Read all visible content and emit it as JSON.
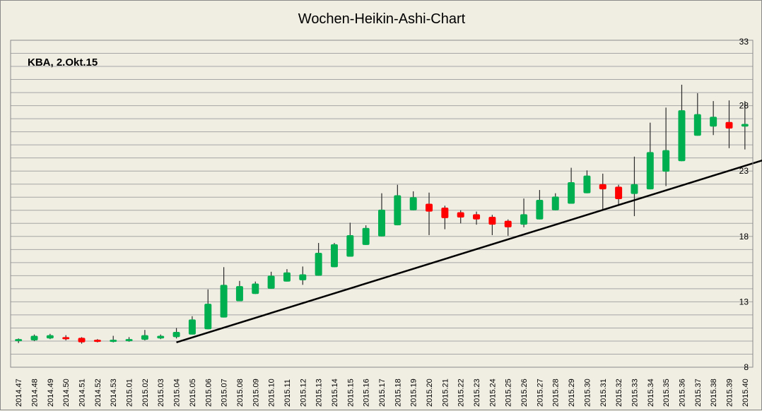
{
  "chart_data": {
    "type": "candlestick",
    "title": "Wochen-Heikin-Ashi-Chart",
    "annotation": "KBA, 2.Okt.15",
    "ylim": [
      8,
      33
    ],
    "yticks": [
      8,
      13,
      18,
      23,
      28,
      33
    ],
    "grid": true,
    "colors": {
      "up": "#00b050",
      "down": "#ff0000",
      "trendline": "#000000",
      "grid": "#a6a6a6",
      "background": "#f0ede2"
    },
    "categories": [
      "2014.47",
      "2014.48",
      "2014.49",
      "2014.50",
      "2014.51",
      "2014.52",
      "2014.53",
      "2015.01",
      "2015.02",
      "2015.03",
      "2015.04",
      "2015.05",
      "2015.06",
      "2015.07",
      "2015.08",
      "2015.09",
      "2015.10",
      "2015.11",
      "2015.12",
      "2015.13",
      "2015.14",
      "2015.15",
      "2015.16",
      "2015.17",
      "2015.18",
      "2015.19",
      "2015.20",
      "2015.21",
      "2015.22",
      "2015.23",
      "2015.24",
      "2015.25",
      "2015.26",
      "2015.27",
      "2015.28",
      "2015.29",
      "2015.30",
      "2015.31",
      "2015.32",
      "2015.33",
      "2015.34",
      "2015.35",
      "2015.36",
      "2015.37",
      "2015.38",
      "2015.39",
      "2015.40"
    ],
    "candles": [
      {
        "o": 10.0,
        "h": 10.2,
        "l": 9.85,
        "c": 10.15
      },
      {
        "o": 10.05,
        "h": 10.5,
        "l": 10.0,
        "c": 10.4
      },
      {
        "o": 10.2,
        "h": 10.55,
        "l": 10.15,
        "c": 10.45
      },
      {
        "o": 10.3,
        "h": 10.45,
        "l": 10.05,
        "c": 10.15
      },
      {
        "o": 10.25,
        "h": 10.3,
        "l": 9.8,
        "c": 9.9
      },
      {
        "o": 10.1,
        "h": 10.15,
        "l": 9.9,
        "c": 9.95
      },
      {
        "o": 10.0,
        "h": 10.4,
        "l": 9.9,
        "c": 10.1
      },
      {
        "o": 10.0,
        "h": 10.3,
        "l": 9.95,
        "c": 10.15
      },
      {
        "o": 10.1,
        "h": 10.85,
        "l": 10.05,
        "c": 10.45
      },
      {
        "o": 10.2,
        "h": 10.5,
        "l": 10.15,
        "c": 10.4
      },
      {
        "o": 10.3,
        "h": 11.0,
        "l": 10.2,
        "c": 10.7
      },
      {
        "o": 10.5,
        "h": 11.9,
        "l": 10.5,
        "c": 11.65
      },
      {
        "o": 10.9,
        "h": 13.95,
        "l": 10.9,
        "c": 12.85
      },
      {
        "o": 11.8,
        "h": 15.65,
        "l": 11.8,
        "c": 14.3
      },
      {
        "o": 13.05,
        "h": 14.6,
        "l": 13.05,
        "c": 14.2
      },
      {
        "o": 13.6,
        "h": 14.55,
        "l": 13.6,
        "c": 14.4
      },
      {
        "o": 14.0,
        "h": 15.3,
        "l": 14.0,
        "c": 15.0
      },
      {
        "o": 14.55,
        "h": 15.5,
        "l": 14.55,
        "c": 15.25
      },
      {
        "o": 14.65,
        "h": 15.7,
        "l": 14.3,
        "c": 15.1
      },
      {
        "o": 15.0,
        "h": 17.5,
        "l": 15.0,
        "c": 16.75
      },
      {
        "o": 15.65,
        "h": 17.5,
        "l": 15.65,
        "c": 17.4
      },
      {
        "o": 16.45,
        "h": 19.05,
        "l": 16.45,
        "c": 18.1
      },
      {
        "o": 17.35,
        "h": 18.85,
        "l": 17.35,
        "c": 18.65
      },
      {
        "o": 18.0,
        "h": 21.3,
        "l": 18.0,
        "c": 20.05
      },
      {
        "o": 18.85,
        "h": 21.95,
        "l": 18.85,
        "c": 21.15
      },
      {
        "o": 20.0,
        "h": 21.45,
        "l": 20.0,
        "c": 21.0
      },
      {
        "o": 20.5,
        "h": 21.35,
        "l": 18.1,
        "c": 19.9
      },
      {
        "o": 20.2,
        "h": 20.35,
        "l": 18.55,
        "c": 19.4
      },
      {
        "o": 19.85,
        "h": 20.0,
        "l": 19.0,
        "c": 19.45
      },
      {
        "o": 19.7,
        "h": 19.9,
        "l": 18.9,
        "c": 19.3
      },
      {
        "o": 19.5,
        "h": 19.65,
        "l": 18.1,
        "c": 18.9
      },
      {
        "o": 19.2,
        "h": 19.3,
        "l": 18.05,
        "c": 18.7
      },
      {
        "o": 18.9,
        "h": 20.9,
        "l": 18.7,
        "c": 19.7
      },
      {
        "o": 19.3,
        "h": 21.55,
        "l": 19.3,
        "c": 20.8
      },
      {
        "o": 20.0,
        "h": 21.3,
        "l": 20.0,
        "c": 21.05
      },
      {
        "o": 20.5,
        "h": 23.25,
        "l": 20.5,
        "c": 22.15
      },
      {
        "o": 21.3,
        "h": 23.05,
        "l": 21.3,
        "c": 22.65
      },
      {
        "o": 22.0,
        "h": 22.8,
        "l": 20.0,
        "c": 21.6
      },
      {
        "o": 21.8,
        "h": 21.95,
        "l": 20.4,
        "c": 20.85
      },
      {
        "o": 21.25,
        "h": 24.1,
        "l": 19.55,
        "c": 22.0
      },
      {
        "o": 21.6,
        "h": 26.7,
        "l": 21.6,
        "c": 24.45
      },
      {
        "o": 22.95,
        "h": 27.85,
        "l": 21.85,
        "c": 24.6
      },
      {
        "o": 23.75,
        "h": 29.6,
        "l": 23.75,
        "c": 27.65
      },
      {
        "o": 25.7,
        "h": 28.95,
        "l": 25.7,
        "c": 27.35
      },
      {
        "o": 26.4,
        "h": 28.35,
        "l": 25.75,
        "c": 27.15
      },
      {
        "o": 26.75,
        "h": 28.4,
        "l": 24.75,
        "c": 26.25
      },
      {
        "o": 26.4,
        "h": 28.35,
        "l": 24.65,
        "c": 26.6
      }
    ],
    "trendline": {
      "start": {
        "x": "2015.04",
        "y": 9.9
      },
      "end": {
        "x": "2015.40",
        "y": 23.4
      },
      "extends_right": true
    }
  }
}
